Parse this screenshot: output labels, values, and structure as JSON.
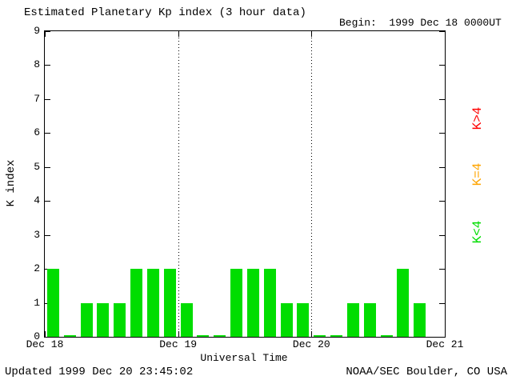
{
  "header": {
    "title": "Estimated Planetary Kp index (3 hour data)",
    "begin_label": "Begin:  1999 Dec 18 0000UT"
  },
  "footer": {
    "updated": "Updated 1999 Dec 20 23:45:02",
    "source": "NOAA/SEC Boulder, CO USA"
  },
  "legend": {
    "items": [
      {
        "label": "K>4",
        "color": "#ff0000"
      },
      {
        "label": "K=4",
        "color": "#ffa500"
      },
      {
        "label": "K<4",
        "color": "#00dd00"
      }
    ]
  },
  "chart_data": {
    "type": "bar",
    "title": "Estimated Planetary Kp index (3 hour data)",
    "xlabel": "Universal Time",
    "ylabel": "K index",
    "ylim": [
      0,
      9
    ],
    "yticks": [
      0,
      1,
      2,
      3,
      4,
      5,
      6,
      7,
      8,
      9
    ],
    "x_day_labels": [
      "Dec 18",
      "Dec 19",
      "Dec 20",
      "Dec 21"
    ],
    "begin": "1999 Dec 18 0000UT",
    "hours_per_bar": 3,
    "bars_per_day": 8,
    "values": [
      2,
      0,
      1,
      1,
      1,
      2,
      2,
      2,
      1,
      0,
      0,
      2,
      2,
      2,
      1,
      1,
      0,
      0,
      1,
      1,
      0,
      2,
      1
    ],
    "bar_color": "#00dd00",
    "color_rule": {
      "lt4": "#00dd00",
      "eq4": "#ffa500",
      "gt4": "#ff0000"
    },
    "dotted_gridlines_at_days": [
      1,
      2
    ],
    "legend_position": "right",
    "grid": "vertical dotted lines at day boundaries"
  }
}
